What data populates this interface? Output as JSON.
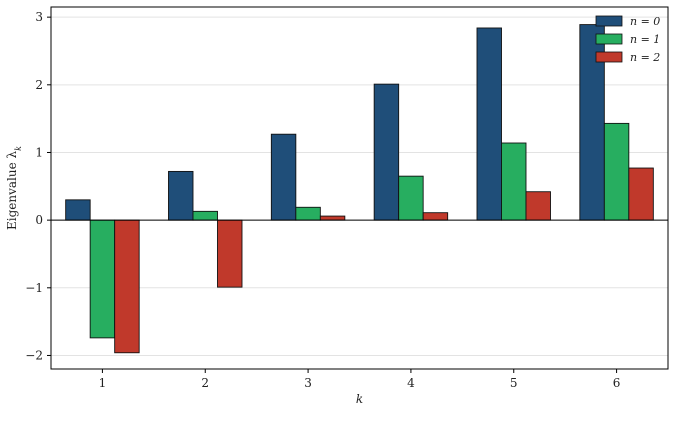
{
  "chart_data": {
    "type": "bar",
    "categories": [
      "1",
      "2",
      "3",
      "4",
      "5",
      "6"
    ],
    "series": [
      {
        "name": "n = 0",
        "color": "#1f4e79",
        "values": [
          0.3,
          0.72,
          1.27,
          2.01,
          2.84,
          2.89
        ]
      },
      {
        "name": "n = 1",
        "color": "#27ae60",
        "values": [
          -1.74,
          0.13,
          0.19,
          0.65,
          1.14,
          1.43
        ]
      },
      {
        "name": "n = 2",
        "color": "#c0392b",
        "values": [
          -1.96,
          -0.99,
          0.06,
          0.11,
          0.42,
          0.77
        ]
      }
    ],
    "xlabel": "k",
    "ylabel": "Eigenvalue λ_k",
    "ylim": [
      -2.2,
      3.15
    ],
    "yticks": [
      "−2",
      "−1",
      "0",
      "1",
      "2",
      "3"
    ],
    "grid": "horizontal",
    "legend": "top-right"
  }
}
